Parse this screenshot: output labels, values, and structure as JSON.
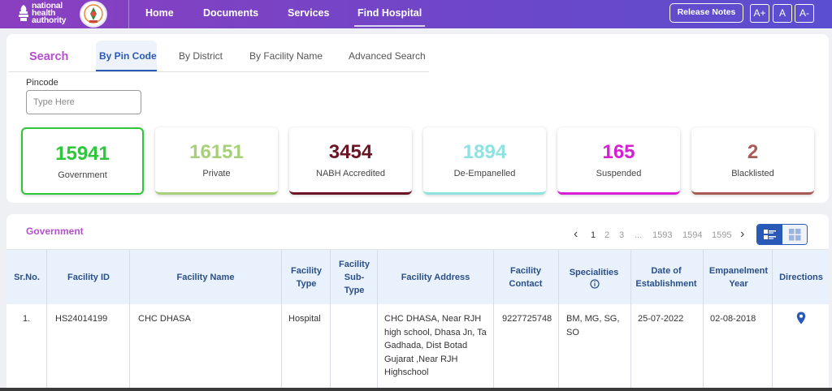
{
  "header": {
    "logo_text": [
      "national",
      "health",
      "authority"
    ],
    "nav": [
      {
        "label": "Home"
      },
      {
        "label": "Documents"
      },
      {
        "label": "Services"
      },
      {
        "label": "Find Hospital"
      }
    ],
    "release_notes": "Release Notes",
    "font_controls": [
      "A+",
      "A",
      "A-"
    ]
  },
  "search": {
    "title": "Search",
    "tabs": [
      "By Pin Code",
      "By District",
      "By Facility Name",
      "Advanced Search"
    ],
    "active_tab": "By Pin Code",
    "pincode_label": "Pincode",
    "pincode_placeholder": "Type Here",
    "pincode_value": ""
  },
  "stats": [
    {
      "value": "15941",
      "label": "Government",
      "color": "#2ec63a"
    },
    {
      "value": "16151",
      "label": "Private",
      "color": "#a8d07a"
    },
    {
      "value": "3454",
      "label": "NABH Accredited",
      "color": "#6a1526"
    },
    {
      "value": "1894",
      "label": "De-Empanelled",
      "color": "#8ee3e0"
    },
    {
      "value": "165",
      "label": "Suspended",
      "color": "#d61ed4"
    },
    {
      "value": "2",
      "label": "Blacklisted",
      "color": "#a85a55"
    }
  ],
  "results": {
    "title": "Government",
    "pagination": {
      "prev": "‹",
      "next": "›",
      "pages": [
        "1",
        "2",
        "3",
        "...",
        "1593",
        "1594",
        "1595"
      ],
      "current": "1"
    },
    "columns": [
      "Sr.No.",
      "Facility ID",
      "Facility Name",
      "Facility Type",
      "Facility Sub-Type",
      "Facility Address",
      "Facility Contact",
      "Specialities",
      "Date of Establishment",
      "Empanelment Year",
      "Directions"
    ],
    "rows": [
      {
        "sr": "1.",
        "facility_id": "HS24014199",
        "facility_name": "CHC DHASA",
        "facility_type": "Hospital",
        "facility_sub_type": "",
        "address": "CHC DHASA, Near RJH high school, Dhasa Jn, Ta Gadhada, Dist Botad Gujarat ,Near RJH Highschool",
        "contact": "9227725748",
        "specialities": "BM, MG, SG, SO",
        "date_of_establishment": "25-07-2022",
        "empanelment_year": "02-08-2018",
        "directions_icon": "map-pin-icon"
      }
    ]
  },
  "colors": {
    "accent": "#2a5ab8",
    "brand_purple": "#b64fce"
  }
}
